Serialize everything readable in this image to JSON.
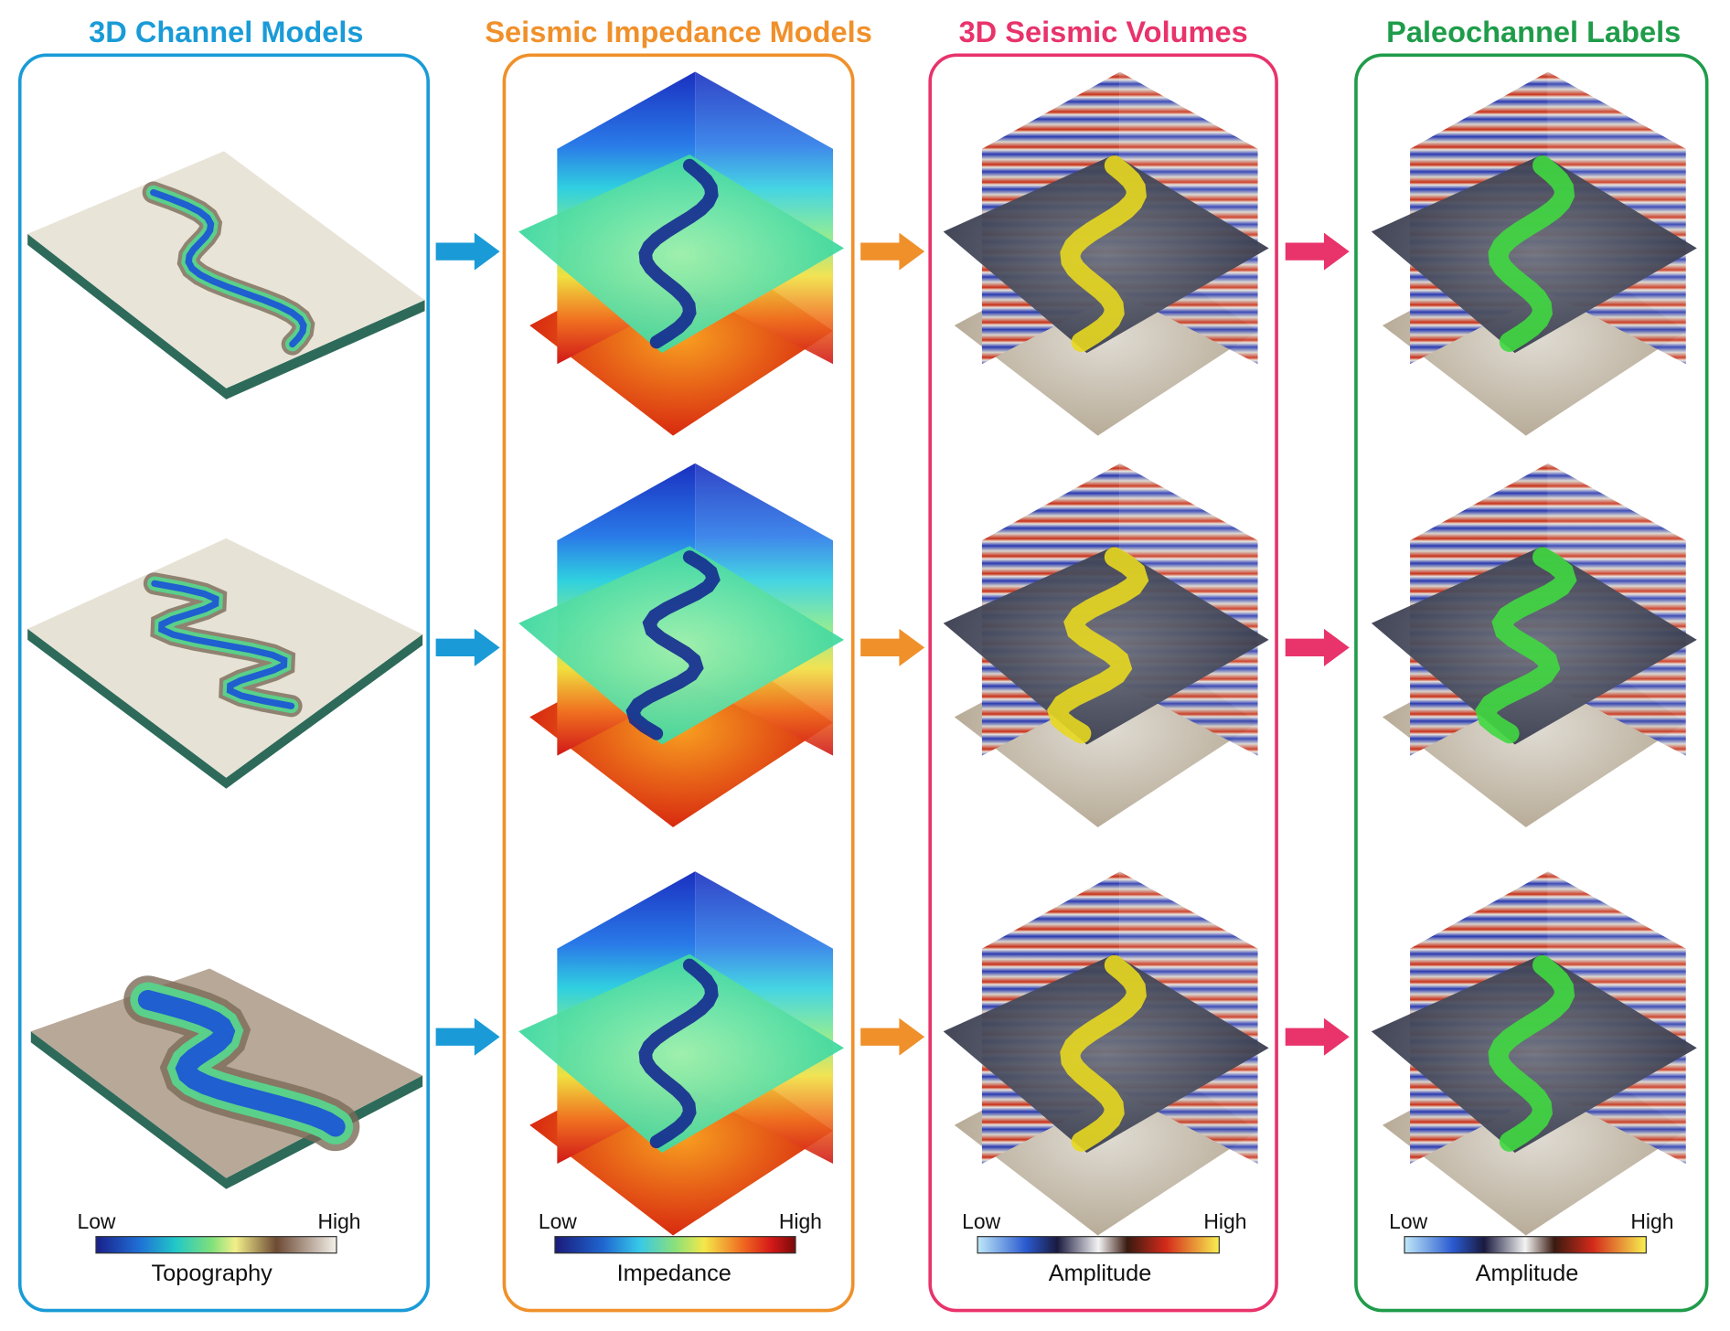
{
  "columns": [
    {
      "title": "3D Channel Models",
      "colorbar": {
        "low": "Low",
        "high": "High",
        "label": "Topography"
      }
    },
    {
      "title": "Seismic Impedance Models",
      "colorbar": {
        "low": "Low",
        "high": "High",
        "label": "Impedance"
      }
    },
    {
      "title": "3D Seismic Volumes",
      "colorbar": {
        "low": "Low",
        "high": "High",
        "label": "Amplitude"
      }
    },
    {
      "title": "Paleochannel Labels",
      "colorbar": {
        "low": "Low",
        "high": "High",
        "label": "Amplitude"
      }
    }
  ]
}
